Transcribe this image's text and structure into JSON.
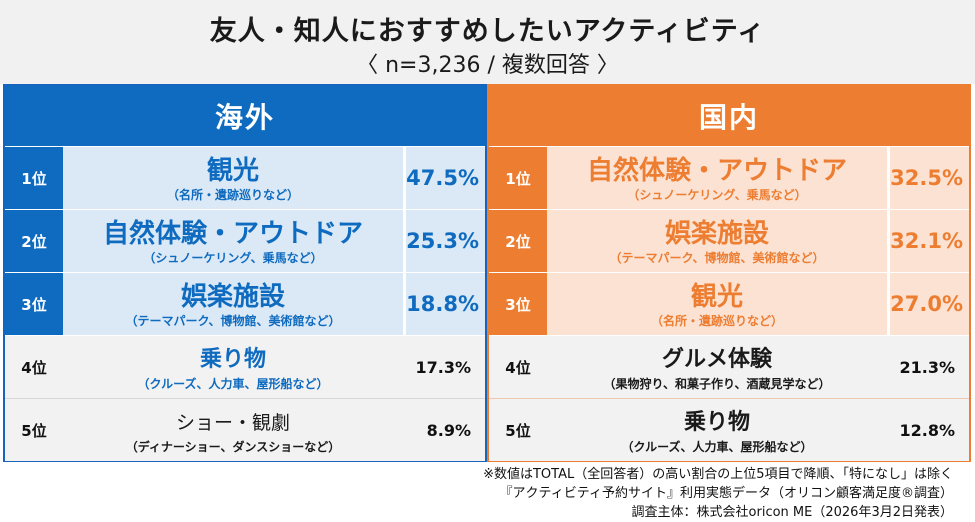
{
  "header": {
    "title": "友人・知人におすすめしたいアクティビティ",
    "subtitle": "〈 n=3,236 / 複数回答 〉"
  },
  "chart_data": [
    {
      "type": "table",
      "title": "海外",
      "ranks": [
        "1位",
        "2位",
        "3位",
        "4位",
        "5位"
      ],
      "categories": [
        "観光",
        "自然体験・アウトドア",
        "娯楽施設",
        "乗り物",
        "ショー・観劇"
      ],
      "details": [
        "（名所・遺跡巡りなど）",
        "（シュノーケリング、乗馬など）",
        "（テーマパーク、博物館、美術館など）",
        "（クルーズ、人力車、屋形船など）",
        "（ディナーショー、ダンスショーなど）"
      ],
      "values": [
        47.5,
        25.3,
        18.8,
        17.3,
        8.9
      ],
      "value_labels": [
        "47.5%",
        "25.3%",
        "18.8%",
        "17.3%",
        "8.9%"
      ]
    },
    {
      "type": "table",
      "title": "国内",
      "ranks": [
        "1位",
        "2位",
        "3位",
        "4位",
        "5位"
      ],
      "categories": [
        "自然体験・アウトドア",
        "娯楽施設",
        "観光",
        "グルメ体験",
        "乗り物"
      ],
      "details": [
        "（シュノーケリング、乗馬など）",
        "（テーマパーク、博物館、美術館など）",
        "（名所・遺跡巡りなど）",
        "（果物狩り、和菓子作り、酒蔵見学など）",
        "（クルーズ、人力車、屋形船など）"
      ],
      "values": [
        32.5,
        32.1,
        27.0,
        21.3,
        12.8
      ],
      "value_labels": [
        "32.5%",
        "32.1%",
        "27.0%",
        "21.3%",
        "12.8%"
      ]
    }
  ],
  "colors": {
    "overseas_accent": "#0f6bbf",
    "overseas_light": "#dbe9f6",
    "domestic_accent": "#ed7d31",
    "domestic_light": "#fbe2d3",
    "lower_row_bg": "#f2f2f2"
  },
  "notes": {
    "line1": "※数値はTOTAL（全回答者）の高い割合の上位5項目で降順、「特になし」は除く",
    "line2": "『アクティビティ予約サイト』利用実態データ（オリコン顧客満足度®調査）",
    "line3": "調査主体：株式会社oricon ME（2026年3月2日発表）"
  }
}
